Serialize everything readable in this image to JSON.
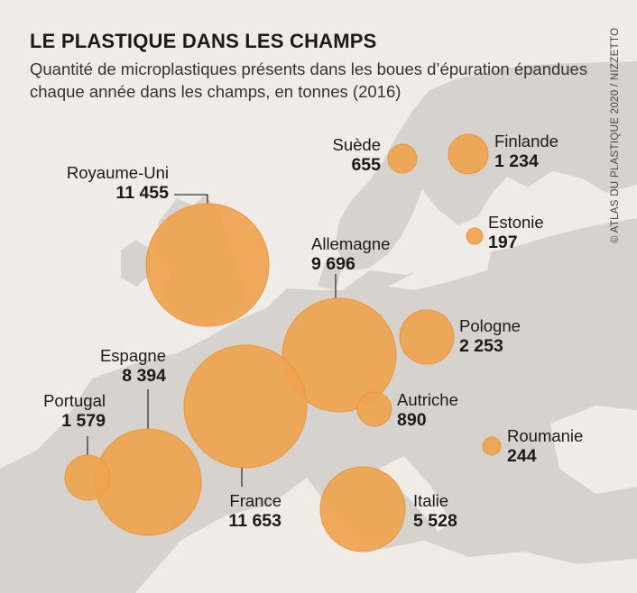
{
  "title": "LE PLASTIQUE DANS LES CHAMPS",
  "subtitle": "Quantité de microplastiques présents dans les boues d’épuration épandues chaque année dans les champs, en tonnes (2016)",
  "credit": "© ATLAS DU PLASTIQUE 2020 / NIZZETTO",
  "colors": {
    "background": "#efece7",
    "land": "#d6d3ce",
    "bubble": "#f0a24c",
    "bubble_stroke": "#e8963a",
    "leader": "#333333"
  },
  "countries": [
    {
      "name": "Royaume-Uni",
      "value": "11 455",
      "tonnes": 11455
    },
    {
      "name": "Allemagne",
      "value": "9 696",
      "tonnes": 9696
    },
    {
      "name": "Suède",
      "value": "655",
      "tonnes": 655
    },
    {
      "name": "Finlande",
      "value": "1 234",
      "tonnes": 1234
    },
    {
      "name": "Estonie",
      "value": "197",
      "tonnes": 197
    },
    {
      "name": "Pologne",
      "value": "2 253",
      "tonnes": 2253
    },
    {
      "name": "Espagne",
      "value": "8 394",
      "tonnes": 8394
    },
    {
      "name": "Portugal",
      "value": "1 579",
      "tonnes": 1579
    },
    {
      "name": "Autriche",
      "value": "890",
      "tonnes": 890
    },
    {
      "name": "Roumanie",
      "value": "244",
      "tonnes": 244
    },
    {
      "name": "France",
      "value": "11 653",
      "tonnes": 11653
    },
    {
      "name": "Italie",
      "value": "5 528",
      "tonnes": 5528
    }
  ],
  "chart_data": {
    "type": "bubble-map",
    "unit": "tonnes",
    "year": 2016,
    "categories": [
      "Royaume-Uni",
      "Allemagne",
      "Suède",
      "Finlande",
      "Estonie",
      "Pologne",
      "Espagne",
      "Portugal",
      "Autriche",
      "Roumanie",
      "France",
      "Italie"
    ],
    "values": [
      11455,
      9696,
      655,
      1234,
      197,
      2253,
      8394,
      1579,
      890,
      244,
      11653,
      5528
    ]
  }
}
